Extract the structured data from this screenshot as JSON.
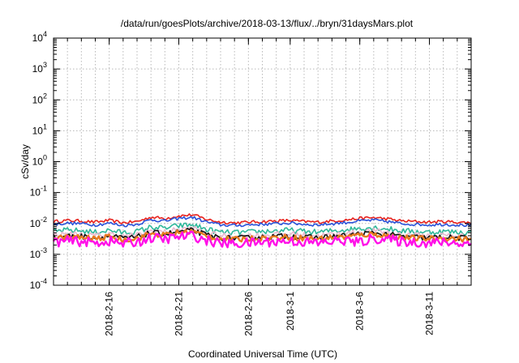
{
  "chart_data": {
    "type": "line",
    "title": "/data/run/goesPlots/archive/2018-03-13/flux/../bryn/31daysMars.plot",
    "xlabel": "Coordinated Universal Time (UTC)",
    "ylabel": "cSv/day",
    "y_scale": "log",
    "ylim": [
      0.0001,
      10000
    ],
    "xlim": [
      "2018-02-12",
      "2018-03-14"
    ],
    "x_ticks": [
      "2018-2-16",
      "2018-2-21",
      "2018-2-26",
      "2018-3-1",
      "2018-3-6",
      "2018-3-11"
    ],
    "y_ticks": [
      {
        "base": "10",
        "exp": "-4",
        "value": 0.0001
      },
      {
        "base": "10",
        "exp": "-3",
        "value": 0.001
      },
      {
        "base": "10",
        "exp": "-2",
        "value": 0.01
      },
      {
        "base": "10",
        "exp": "-1",
        "value": 0.1
      },
      {
        "base": "10",
        "exp": "0",
        "value": 1
      },
      {
        "base": "10",
        "exp": "1",
        "value": 10
      },
      {
        "base": "10",
        "exp": "2",
        "value": 100
      },
      {
        "base": "10",
        "exp": "3",
        "value": 1000
      },
      {
        "base": "10",
        "exp": "4",
        "value": 10000
      }
    ],
    "grid": true,
    "series": [
      {
        "color": "#e8231e",
        "values": [
          [
            "2018-02-12",
            0.0115
          ],
          [
            "2018-02-13",
            0.0125
          ],
          [
            "2018-02-14",
            0.012
          ],
          [
            "2018-02-15",
            0.011
          ],
          [
            "2018-02-16",
            0.0125
          ],
          [
            "2018-02-17",
            0.0105
          ],
          [
            "2018-02-18",
            0.0115
          ],
          [
            "2018-02-19",
            0.016
          ],
          [
            "2018-02-20",
            0.0145
          ],
          [
            "2018-02-21",
            0.0175
          ],
          [
            "2018-02-22",
            0.019
          ],
          [
            "2018-02-23",
            0.0135
          ],
          [
            "2018-02-24",
            0.011
          ],
          [
            "2018-02-25",
            0.0105
          ],
          [
            "2018-02-26",
            0.011
          ],
          [
            "2018-02-27",
            0.0115
          ],
          [
            "2018-02-28",
            0.012
          ],
          [
            "2018-03-01",
            0.0125
          ],
          [
            "2018-03-02",
            0.0115
          ],
          [
            "2018-03-03",
            0.011
          ],
          [
            "2018-03-04",
            0.012
          ],
          [
            "2018-03-05",
            0.013
          ],
          [
            "2018-03-06",
            0.0145
          ],
          [
            "2018-03-07",
            0.0155
          ],
          [
            "2018-03-08",
            0.014
          ],
          [
            "2018-03-09",
            0.012
          ],
          [
            "2018-03-10",
            0.0115
          ],
          [
            "2018-03-11",
            0.011
          ],
          [
            "2018-03-12",
            0.0115
          ],
          [
            "2018-03-13",
            0.011
          ],
          [
            "2018-03-14",
            0.0105
          ]
        ]
      },
      {
        "color": "#2a52d9",
        "values": [
          [
            "2018-02-12",
            0.0095
          ],
          [
            "2018-02-13",
            0.0102
          ],
          [
            "2018-02-14",
            0.0098
          ],
          [
            "2018-02-15",
            0.009
          ],
          [
            "2018-02-16",
            0.0102
          ],
          [
            "2018-02-17",
            0.0086
          ],
          [
            "2018-02-18",
            0.0094
          ],
          [
            "2018-02-19",
            0.0132
          ],
          [
            "2018-02-20",
            0.012
          ],
          [
            "2018-02-21",
            0.0145
          ],
          [
            "2018-02-22",
            0.0157
          ],
          [
            "2018-02-23",
            0.0111
          ],
          [
            "2018-02-24",
            0.009
          ],
          [
            "2018-02-25",
            0.0086
          ],
          [
            "2018-02-26",
            0.009
          ],
          [
            "2018-02-27",
            0.0094
          ],
          [
            "2018-02-28",
            0.0098
          ],
          [
            "2018-03-01",
            0.0103
          ],
          [
            "2018-03-02",
            0.0094
          ],
          [
            "2018-03-03",
            0.009
          ],
          [
            "2018-03-04",
            0.0098
          ],
          [
            "2018-03-05",
            0.0107
          ],
          [
            "2018-03-06",
            0.012
          ],
          [
            "2018-03-07",
            0.0128
          ],
          [
            "2018-03-08",
            0.0115
          ],
          [
            "2018-03-09",
            0.0098
          ],
          [
            "2018-03-10",
            0.0094
          ],
          [
            "2018-03-11",
            0.009
          ],
          [
            "2018-03-12",
            0.0094
          ],
          [
            "2018-03-13",
            0.009
          ],
          [
            "2018-03-14",
            0.0086
          ]
        ]
      },
      {
        "color": "#2fb89a",
        "values": [
          [
            "2018-02-12",
            0.0055
          ],
          [
            "2018-02-13",
            0.006
          ],
          [
            "2018-02-14",
            0.0058
          ],
          [
            "2018-02-15",
            0.0052
          ],
          [
            "2018-02-16",
            0.006
          ],
          [
            "2018-02-17",
            0.005
          ],
          [
            "2018-02-18",
            0.0055
          ],
          [
            "2018-02-19",
            0.0076
          ],
          [
            "2018-02-20",
            0.007
          ],
          [
            "2018-02-21",
            0.0084
          ],
          [
            "2018-02-22",
            0.009
          ],
          [
            "2018-02-23",
            0.0064
          ],
          [
            "2018-02-24",
            0.0052
          ],
          [
            "2018-02-25",
            0.005
          ],
          [
            "2018-02-26",
            0.0052
          ],
          [
            "2018-02-27",
            0.0055
          ],
          [
            "2018-02-28",
            0.0058
          ],
          [
            "2018-03-01",
            0.006
          ],
          [
            "2018-03-02",
            0.0055
          ],
          [
            "2018-03-03",
            0.0052
          ],
          [
            "2018-03-04",
            0.0058
          ],
          [
            "2018-03-05",
            0.0062
          ],
          [
            "2018-03-06",
            0.007
          ],
          [
            "2018-03-07",
            0.0074
          ],
          [
            "2018-03-08",
            0.0067
          ],
          [
            "2018-03-09",
            0.0058
          ],
          [
            "2018-03-10",
            0.0055
          ],
          [
            "2018-03-11",
            0.0052
          ],
          [
            "2018-03-12",
            0.0055
          ],
          [
            "2018-03-13",
            0.0052
          ],
          [
            "2018-03-14",
            0.005
          ]
        ]
      },
      {
        "color": "#e9b8cf",
        "values": [
          [
            "2018-02-12",
            0.0042
          ],
          [
            "2018-02-13",
            0.0046
          ],
          [
            "2018-02-14",
            0.0044
          ],
          [
            "2018-02-15",
            0.004
          ],
          [
            "2018-02-16",
            0.0046
          ],
          [
            "2018-02-17",
            0.0038
          ],
          [
            "2018-02-18",
            0.0042
          ],
          [
            "2018-02-19",
            0.0058
          ],
          [
            "2018-02-20",
            0.0053
          ],
          [
            "2018-02-21",
            0.0064
          ],
          [
            "2018-02-22",
            0.0069
          ],
          [
            "2018-02-23",
            0.0049
          ],
          [
            "2018-02-24",
            0.004
          ],
          [
            "2018-02-25",
            0.0038
          ],
          [
            "2018-02-26",
            0.004
          ],
          [
            "2018-02-27",
            0.0042
          ],
          [
            "2018-02-28",
            0.0044
          ],
          [
            "2018-03-01",
            0.0046
          ],
          [
            "2018-03-02",
            0.0042
          ],
          [
            "2018-03-03",
            0.004
          ],
          [
            "2018-03-04",
            0.0044
          ],
          [
            "2018-03-05",
            0.0047
          ],
          [
            "2018-03-06",
            0.0053
          ],
          [
            "2018-03-07",
            0.0057
          ],
          [
            "2018-03-08",
            0.0051
          ],
          [
            "2018-03-09",
            0.0044
          ],
          [
            "2018-03-10",
            0.0042
          ],
          [
            "2018-03-11",
            0.004
          ],
          [
            "2018-03-12",
            0.0042
          ],
          [
            "2018-03-13",
            0.004
          ],
          [
            "2018-03-14",
            0.0038
          ]
        ]
      },
      {
        "color": "#111111",
        "values": [
          [
            "2018-02-12",
            0.0036
          ],
          [
            "2018-02-13",
            0.0039
          ],
          [
            "2018-02-14",
            0.0038
          ],
          [
            "2018-02-15",
            0.0034
          ],
          [
            "2018-02-16",
            0.0039
          ],
          [
            "2018-02-17",
            0.0033
          ],
          [
            "2018-02-18",
            0.0036
          ],
          [
            "2018-02-19",
            0.005
          ],
          [
            "2018-02-20",
            0.0046
          ],
          [
            "2018-02-21",
            0.0055
          ],
          [
            "2018-02-22",
            0.0059
          ],
          [
            "2018-02-23",
            0.0042
          ],
          [
            "2018-02-24",
            0.0034
          ],
          [
            "2018-02-25",
            0.0033
          ],
          [
            "2018-02-26",
            0.0034
          ],
          [
            "2018-02-27",
            0.0036
          ],
          [
            "2018-02-28",
            0.0038
          ],
          [
            "2018-03-01",
            0.0039
          ],
          [
            "2018-03-02",
            0.0036
          ],
          [
            "2018-03-03",
            0.0034
          ],
          [
            "2018-03-04",
            0.0038
          ],
          [
            "2018-03-05",
            0.004
          ],
          [
            "2018-03-06",
            0.0046
          ],
          [
            "2018-03-07",
            0.0048
          ],
          [
            "2018-03-08",
            0.0044
          ],
          [
            "2018-03-09",
            0.0038
          ],
          [
            "2018-03-10",
            0.0036
          ],
          [
            "2018-03-11",
            0.0034
          ],
          [
            "2018-03-12",
            0.0036
          ],
          [
            "2018-03-13",
            0.0034
          ],
          [
            "2018-03-14",
            0.0033
          ]
        ]
      },
      {
        "color": "#e87a1e",
        "values": [
          [
            "2018-02-12",
            0.0033
          ],
          [
            "2018-02-13",
            0.0036
          ],
          [
            "2018-02-14",
            0.0035
          ],
          [
            "2018-02-15",
            0.0032
          ],
          [
            "2018-02-16",
            0.0036
          ],
          [
            "2018-02-17",
            0.003
          ],
          [
            "2018-02-18",
            0.0033
          ],
          [
            "2018-02-19",
            0.0046
          ],
          [
            "2018-02-20",
            0.0042
          ],
          [
            "2018-02-21",
            0.0051
          ],
          [
            "2018-02-22",
            0.0055
          ],
          [
            "2018-02-23",
            0.0039
          ],
          [
            "2018-02-24",
            0.0032
          ],
          [
            "2018-02-25",
            0.003
          ],
          [
            "2018-02-26",
            0.0032
          ],
          [
            "2018-02-27",
            0.0033
          ],
          [
            "2018-02-28",
            0.0035
          ],
          [
            "2018-03-01",
            0.0036
          ],
          [
            "2018-03-02",
            0.0033
          ],
          [
            "2018-03-03",
            0.0032
          ],
          [
            "2018-03-04",
            0.0035
          ],
          [
            "2018-03-05",
            0.0037
          ],
          [
            "2018-03-06",
            0.0042
          ],
          [
            "2018-03-07",
            0.0045
          ],
          [
            "2018-03-08",
            0.004
          ],
          [
            "2018-03-09",
            0.0035
          ],
          [
            "2018-03-10",
            0.0033
          ],
          [
            "2018-03-11",
            0.0032
          ],
          [
            "2018-03-12",
            0.0033
          ],
          [
            "2018-03-13",
            0.0032
          ],
          [
            "2018-03-14",
            0.003
          ]
        ]
      },
      {
        "color": "#ff10e8",
        "values": [
          [
            "2018-02-12",
            0.0025
          ],
          [
            "2018-02-13",
            0.0027
          ],
          [
            "2018-02-14",
            0.0026
          ],
          [
            "2018-02-15",
            0.0023
          ],
          [
            "2018-02-16",
            0.0027
          ],
          [
            "2018-02-17",
            0.0022
          ],
          [
            "2018-02-18",
            0.0025
          ],
          [
            "2018-02-19",
            0.0034
          ],
          [
            "2018-02-20",
            0.0031
          ],
          [
            "2018-02-21",
            0.0037
          ],
          [
            "2018-02-22",
            0.004
          ],
          [
            "2018-02-23",
            0.0028
          ],
          [
            "2018-02-24",
            0.0023
          ],
          [
            "2018-02-25",
            0.0022
          ],
          [
            "2018-02-26",
            0.0023
          ],
          [
            "2018-02-27",
            0.0025
          ],
          [
            "2018-02-28",
            0.0026
          ],
          [
            "2018-03-01",
            0.0027
          ],
          [
            "2018-03-02",
            0.0025
          ],
          [
            "2018-03-03",
            0.0023
          ],
          [
            "2018-03-04",
            0.0026
          ],
          [
            "2018-03-05",
            0.0028
          ],
          [
            "2018-03-06",
            0.0024
          ],
          [
            "2018-03-07",
            0.0033
          ],
          [
            "2018-03-08",
            0.003
          ],
          [
            "2018-03-09",
            0.0026
          ],
          [
            "2018-03-10",
            0.0025
          ],
          [
            "2018-03-11",
            0.0023
          ],
          [
            "2018-03-12",
            0.0025
          ],
          [
            "2018-03-13",
            0.0023
          ],
          [
            "2018-03-14",
            0.0022
          ]
        ]
      }
    ]
  }
}
